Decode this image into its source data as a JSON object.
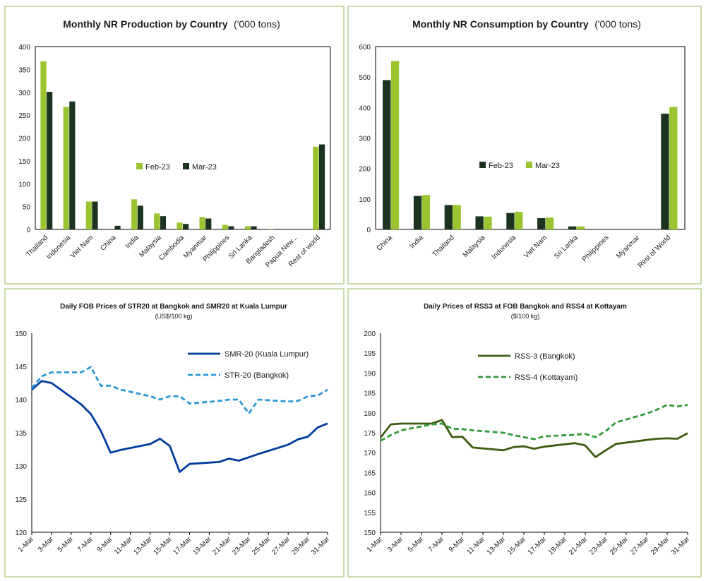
{
  "colors": {
    "green_light": "#9bc431",
    "green_dark": "#1c3320",
    "blue_dark": "#003b9c",
    "blue_light": "#2c98d6",
    "olive": "#3e5b12",
    "green_dash": "#2f9a38",
    "frame": "#c8dcaa"
  },
  "chart_data": [
    {
      "type": "bar",
      "title": "Monthly NR Production by Country",
      "title_unit": "('000 tons)",
      "xlabel": "",
      "ylabel": "",
      "ylim": [
        0,
        400
      ],
      "yticks": [
        "0",
        "50",
        "100",
        "150",
        "200",
        "250",
        "300",
        "350",
        "400"
      ],
      "categories": [
        "Thailand",
        "Indonesia",
        "Viet Nam",
        "China",
        "India",
        "Malaysia",
        "Cambodia",
        "Myanmar",
        "Philippines",
        "Sri Lanka",
        "Bangladesh",
        "Papua New...",
        "Rest of world"
      ],
      "series": [
        {
          "name": "Feb-23",
          "color": "#9bc431",
          "values": [
            368,
            268,
            61,
            0,
            66,
            35,
            15,
            27,
            10,
            7,
            1,
            0,
            181
          ]
        },
        {
          "name": "Mar-23",
          "color": "#1c3320",
          "values": [
            301,
            280,
            61,
            8,
            52,
            29,
            12,
            24,
            7,
            7,
            1,
            0,
            186
          ]
        }
      ],
      "legend": "center"
    },
    {
      "type": "bar",
      "title": "Monthly NR Consumption by Country",
      "title_unit": "('000 tons)",
      "xlabel": "",
      "ylabel": "",
      "ylim": [
        0,
        600
      ],
      "yticks": [
        "0",
        "100",
        "200",
        "300",
        "400",
        "500",
        "600"
      ],
      "categories": [
        "China",
        "India",
        "Thailand",
        "Malaysia",
        "Indonesia",
        "Viet Nam",
        "Sri Lanka",
        "Philippines",
        "Myanmar",
        "Rest of World"
      ],
      "series": [
        {
          "name": "Feb-23",
          "color": "#1c3320",
          "values": [
            490,
            110,
            80,
            43,
            54,
            37,
            10,
            0,
            0,
            380
          ]
        },
        {
          "name": "Mar-23",
          "color": "#9bc431",
          "values": [
            553,
            113,
            80,
            42,
            58,
            39,
            10,
            0,
            0,
            402
          ]
        }
      ],
      "legend": "center"
    },
    {
      "type": "line",
      "title": "Daily FOB Prices of STR20 at Bangkok and SMR20 at Kuala Lumpur",
      "subtitle": "(US$/100 kg)",
      "xlabel": "",
      "ylabel": "",
      "ylim": [
        120,
        150
      ],
      "yticks": [
        "120",
        "125",
        "130",
        "135",
        "140",
        "145",
        "150"
      ],
      "x": [
        "1-Mar",
        "2-Mar",
        "3-Mar",
        "6-Mar",
        "7-Mar",
        "8-Mar",
        "9-Mar",
        "10-Mar",
        "13-Mar",
        "14-Mar",
        "15-Mar",
        "16-Mar",
        "17-Mar",
        "20-Mar",
        "21-Mar",
        "22-Mar",
        "23-Mar",
        "24-Mar",
        "27-Mar",
        "28-Mar",
        "29-Mar",
        "30-Mar",
        "31-Mar"
      ],
      "xtick_labels": [
        "1-Mar",
        "3-Mar",
        "5-Mar",
        "7-Mar",
        "9-Mar",
        "11-Mar",
        "13-Mar",
        "15-Mar",
        "17-Mar",
        "19-Mar",
        "21-Mar",
        "23-Mar",
        "25-Mar",
        "27-Mar",
        "29-Mar",
        "31-Mar"
      ],
      "series": [
        {
          "name": "SMR-20 (Kuala Lumpur)",
          "color": "#003b9c",
          "style": "solid",
          "values": [
            141.5,
            142.8,
            142.5,
            139.3,
            137.8,
            135.3,
            132.0,
            132.4,
            133.3,
            134.1,
            133.0,
            129.1,
            130.3,
            130.6,
            131.1,
            130.8,
            131.3,
            131.8,
            133.2,
            134.0,
            134.4,
            135.8,
            136.4
          ]
        },
        {
          "name": "STR-20 (Bangkok)",
          "color": "#2c98d6",
          "style": "dashed",
          "values": [
            141.7,
            143.5,
            144.1,
            144.1,
            144.9,
            142.1,
            142.1,
            141.5,
            140.5,
            140.0,
            140.5,
            140.5,
            139.4,
            139.8,
            140.0,
            140.0,
            137.9,
            140.0,
            139.7,
            139.8,
            140.5,
            140.6,
            141.5
          ]
        }
      ],
      "legend": "top-right"
    },
    {
      "type": "line",
      "title": "Daily Prices of RSS3 at FOB Bangkok and RSS4 at Kottayam",
      "subtitle": "($/100 kg)",
      "xlabel": "",
      "ylabel": "",
      "ylim": [
        150,
        200
      ],
      "yticks": [
        "150",
        "155",
        "160",
        "165",
        "170",
        "175",
        "180",
        "185",
        "190",
        "195",
        "200"
      ],
      "x": [
        "1-Mar",
        "2-Mar",
        "3-Mar",
        "6-Mar",
        "7-Mar",
        "8-Mar",
        "9-Mar",
        "10-Mar",
        "13-Mar",
        "14-Mar",
        "15-Mar",
        "16-Mar",
        "17-Mar",
        "20-Mar",
        "21-Mar",
        "22-Mar",
        "23-Mar",
        "24-Mar",
        "27-Mar",
        "28-Mar",
        "29-Mar",
        "30-Mar",
        "31-Mar"
      ],
      "xtick_labels": [
        "1-Mar",
        "3-Mar",
        "5-Mar",
        "7-Mar",
        "9-Mar",
        "11-Mar",
        "13-Mar",
        "15-Mar",
        "17-Mar",
        "19-Mar",
        "21-Mar",
        "23-Mar",
        "25-Mar",
        "27-Mar",
        "29-Mar",
        "31-Mar"
      ],
      "series": [
        {
          "name": "RSS-3 (Bangkok)",
          "color": "#3e5b12",
          "style": "solid",
          "values": [
            173.8,
            177.1,
            177.3,
            177.3,
            178.2,
            173.9,
            174.0,
            171.3,
            170.6,
            171.4,
            171.6,
            171.0,
            171.5,
            172.4,
            171.8,
            168.9,
            170.6,
            172.2,
            173.2,
            173.5,
            173.6,
            173.5,
            174.9
          ]
        },
        {
          "name": "RSS-4 (Kottayam)",
          "color": "#2f9a38",
          "style": "dashed",
          "values": [
            173.0,
            174.4,
            175.6,
            177.1,
            177.3,
            176.0,
            175.9,
            175.6,
            175.0,
            174.4,
            173.9,
            173.4,
            174.1,
            174.5,
            174.7,
            173.9,
            175.4,
            177.6,
            179.8,
            180.8,
            182.0,
            181.6,
            182.0
          ]
        }
      ],
      "legend": "top-left"
    }
  ]
}
